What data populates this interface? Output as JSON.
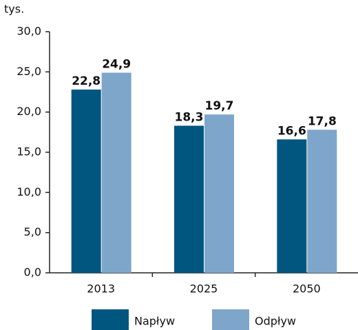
{
  "chart_data": {
    "type": "bar",
    "y_label": "tys.",
    "categories": [
      "2013",
      "2025",
      "2050"
    ],
    "series": [
      {
        "name": "Napływ",
        "color": "#00567f",
        "values": [
          22.8,
          18.3,
          16.6
        ],
        "value_labels": [
          "22,8",
          "18,3",
          "16,6"
        ]
      },
      {
        "name": "Odpływ",
        "color": "#7ea6cb",
        "values": [
          24.9,
          19.7,
          17.8
        ],
        "value_labels": [
          "24,9",
          "19,7",
          "17,8"
        ]
      }
    ],
    "ylim": [
      0,
      30
    ],
    "yticks": [
      {
        "value": 0,
        "label": "0,0"
      },
      {
        "value": 5,
        "label": "5,0"
      },
      {
        "value": 10,
        "label": "10,0"
      },
      {
        "value": 15,
        "label": "15,0"
      },
      {
        "value": 20,
        "label": "20,0"
      },
      {
        "value": 25,
        "label": "25,0"
      },
      {
        "value": 30,
        "label": "30,0"
      }
    ],
    "grid": false,
    "legend": "bottom"
  }
}
